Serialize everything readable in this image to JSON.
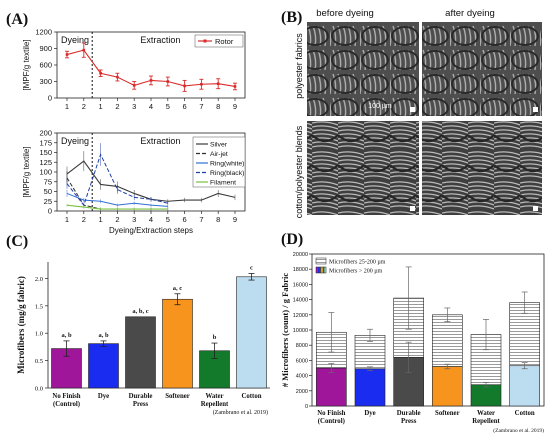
{
  "panels": {
    "A": {
      "label": "(A)"
    },
    "B": {
      "label": "(B)"
    },
    "C": {
      "label": "(C)"
    },
    "D": {
      "label": "(D)"
    }
  },
  "semB": {
    "col_before": "before dyeing",
    "col_after": "after dyeing",
    "row1": "polyester fabrics",
    "row2": "cotton/polyester blends",
    "scale": "100 µm"
  },
  "colors": {
    "rotor": "#d92b2b",
    "silver": "#3b3b3b",
    "airjet": "#2f2f2f",
    "ring_white": "#2f6fd6",
    "ring_black": "#1f3fa8",
    "filament": "#7ac142",
    "nofinish": "#a0169a",
    "dye": "#1a2cf0",
    "durable": "#4a4a4a",
    "softener": "#f7941d",
    "water": "#127a2a",
    "cotton": "#bcdcf0"
  },
  "chart_data": [
    {
      "id": "A-top",
      "type": "line",
      "section_left": "Dyeing",
      "section_right": "Extraction",
      "ylabel": "[MPF/g textile]",
      "xlabel": "",
      "ylim": [
        0,
        1200
      ],
      "yticks": [
        "0",
        "300",
        "600",
        "900",
        "1200"
      ],
      "x": [
        "1",
        "2",
        "1",
        "2",
        "3",
        "4",
        "5",
        "6",
        "7",
        "8",
        "9"
      ],
      "series": [
        {
          "name": "Rotor",
          "values": [
            790,
            870,
            450,
            380,
            230,
            320,
            300,
            220,
            250,
            260,
            210
          ],
          "errors": [
            60,
            130,
            60,
            70,
            70,
            80,
            80,
            100,
            90,
            90,
            60
          ]
        }
      ],
      "legend": "top-right"
    },
    {
      "id": "A-bottom",
      "type": "line",
      "section_left": "Dyeing",
      "section_right": "Extraction",
      "ylabel": "[MPF/g textile]",
      "xlabel": "Dyeing/Extraction steps",
      "ylim": [
        0,
        200
      ],
      "yticks": [
        "0",
        "25",
        "50",
        "75",
        "100",
        "125",
        "150",
        "175",
        "200"
      ],
      "x": [
        "1",
        "2",
        "1",
        "2",
        "3",
        "4",
        "5",
        "6",
        "7",
        "8",
        "9"
      ],
      "series": [
        {
          "name": "Silver",
          "values": [
            95,
            128,
            68,
            63,
            45,
            30,
            25,
            28,
            28,
            45,
            35
          ]
        },
        {
          "name": "Air-jet",
          "values": [
            85,
            15,
            5,
            5,
            5,
            5,
            5,
            null,
            null,
            null,
            null
          ]
        },
        {
          "name": "Ring(white)",
          "values": [
            45,
            28,
            25,
            15,
            20,
            15,
            12,
            null,
            null,
            null,
            null
          ]
        },
        {
          "name": "Ring(black)",
          "values": [
            70,
            15,
            145,
            55,
            35,
            30,
            20,
            null,
            null,
            null,
            null
          ]
        },
        {
          "name": "Filament",
          "values": [
            15,
            10,
            5,
            5,
            5,
            5,
            5,
            null,
            null,
            null,
            null
          ]
        }
      ],
      "legend": "top-right"
    },
    {
      "id": "C",
      "type": "bar",
      "ylabel": "Microfibers (mg/g fabric)",
      "ylim": [
        0,
        2.3
      ],
      "yticks": [
        "0.0",
        "0.5",
        "1.0",
        "1.5",
        "2.0"
      ],
      "categories": [
        "No Finish (Control)",
        "Dye",
        "Durable Press",
        "Softener",
        "Water Repellent",
        "Cotton"
      ],
      "values": [
        0.72,
        0.81,
        1.3,
        1.62,
        0.68,
        2.03
      ],
      "errors": [
        0.14,
        0.05,
        0.0,
        0.1,
        0.14,
        0.06
      ],
      "letters": [
        "a, b",
        "a, b",
        "a, b, c",
        "a, c",
        "b",
        "c"
      ],
      "note": "(Zambrano et al. 2019)"
    },
    {
      "id": "D",
      "type": "bar",
      "stacked": true,
      "ylabel": "# Microfibers (count) / g Fabric",
      "ylim": [
        0,
        20000
      ],
      "yticks": [
        "0",
        "2000",
        "4000",
        "6000",
        "8000",
        "10000",
        "12000",
        "14000",
        "16000",
        "18000",
        "20000"
      ],
      "categories": [
        "No Finish (Control)",
        "Dye",
        "Durable Press",
        "Softener",
        "Water Repellent",
        "Cotton"
      ],
      "series": [
        {
          "name": "Microfibers > 200 µm",
          "values": [
            5000,
            4900,
            6400,
            5200,
            2800,
            5300
          ],
          "errors": [
            600,
            250,
            2000,
            300,
            300,
            400
          ]
        },
        {
          "name": "Microfibers 25-200 µm",
          "values": [
            4700,
            4400,
            7800,
            6800,
            6600,
            8300
          ],
          "errors": [
            2600,
            800,
            4100,
            900,
            2000,
            1400
          ]
        }
      ],
      "legend": "top-left",
      "note": "(Zambrano et al. 2019)"
    }
  ],
  "cats_C": [
    "No Finish\n(Control)",
    "Dye",
    "Durable\nPress",
    "Softener",
    "Water\nRepellent",
    "Cotton"
  ]
}
